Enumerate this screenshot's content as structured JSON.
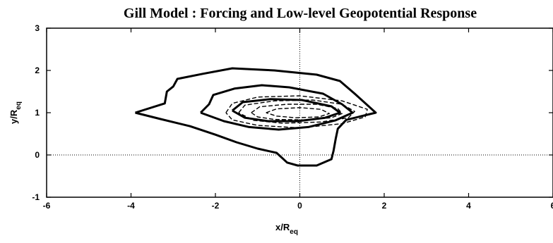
{
  "chart_data": {
    "type": "contour",
    "title": "Gill Model : Forcing and Low-level Geopotential Response",
    "xlabel": "x/R",
    "xlabel_sub": "eq",
    "ylabel": "y/R",
    "ylabel_sub": "eq",
    "xlim": [
      -6,
      6
    ],
    "ylim": [
      -1,
      3
    ],
    "x_ticks": [
      -6,
      -4,
      -2,
      0,
      2,
      4,
      6
    ],
    "y_ticks": [
      -1,
      0,
      1,
      2,
      3
    ],
    "x_tick_labels": [
      "-6",
      "-4",
      "-2",
      "0",
      "2",
      "4",
      "6"
    ],
    "y_tick_labels": [
      "-1",
      "0",
      "1",
      "2",
      "3"
    ],
    "reference_lines": {
      "x": 0,
      "y": 0,
      "style": "dotted"
    },
    "series": [
      {
        "style": "solid-thick",
        "contours": [
          [
            [
              -3.9,
              1.0
            ],
            [
              -3.2,
              1.22
            ],
            [
              -3.15,
              1.5
            ],
            [
              -3.0,
              1.62
            ],
            [
              -2.9,
              1.8
            ],
            [
              -2.3,
              1.92
            ],
            [
              -1.6,
              2.05
            ],
            [
              -0.6,
              2.0
            ],
            [
              0.4,
              1.9
            ],
            [
              0.95,
              1.75
            ],
            [
              1.3,
              1.45
            ],
            [
              1.8,
              1.0
            ],
            [
              1.1,
              0.83
            ],
            [
              0.9,
              0.62
            ],
            [
              0.85,
              0.38
            ],
            [
              0.8,
              0.1
            ],
            [
              0.75,
              -0.1
            ],
            [
              0.4,
              -0.25
            ],
            [
              -0.05,
              -0.25
            ],
            [
              -0.3,
              -0.18
            ],
            [
              -0.55,
              0.05
            ],
            [
              -1.0,
              0.15
            ],
            [
              -1.5,
              0.3
            ],
            [
              -2.0,
              0.48
            ],
            [
              -2.6,
              0.68
            ],
            [
              -3.3,
              0.85
            ],
            [
              -3.9,
              1.0
            ]
          ],
          [
            [
              -2.35,
              1.0
            ],
            [
              -2.15,
              1.2
            ],
            [
              -2.05,
              1.42
            ],
            [
              -1.55,
              1.57
            ],
            [
              -0.9,
              1.65
            ],
            [
              -0.25,
              1.6
            ],
            [
              0.55,
              1.45
            ],
            [
              1.0,
              1.2
            ],
            [
              1.25,
              1.0
            ],
            [
              0.85,
              0.82
            ],
            [
              0.2,
              0.66
            ],
            [
              -0.5,
              0.6
            ],
            [
              -1.2,
              0.66
            ],
            [
              -1.8,
              0.8
            ],
            [
              -2.35,
              1.0
            ]
          ],
          [
            [
              -1.6,
              1.05
            ],
            [
              -1.35,
              1.25
            ],
            [
              -0.7,
              1.32
            ],
            [
              0.05,
              1.3
            ],
            [
              0.75,
              1.15
            ],
            [
              0.95,
              1.0
            ],
            [
              0.6,
              0.88
            ],
            [
              -0.05,
              0.8
            ],
            [
              -0.75,
              0.8
            ],
            [
              -1.3,
              0.88
            ],
            [
              -1.6,
              1.05
            ]
          ]
        ]
      },
      {
        "style": "dashed",
        "contours": [
          [
            [
              -1.75,
              1.0
            ],
            [
              -1.6,
              1.22
            ],
            [
              -1.0,
              1.37
            ],
            [
              0.0,
              1.4
            ],
            [
              1.0,
              1.28
            ],
            [
              1.6,
              1.08
            ],
            [
              1.55,
              0.9
            ],
            [
              1.0,
              0.74
            ],
            [
              0.0,
              0.64
            ],
            [
              -1.0,
              0.7
            ],
            [
              -1.6,
              0.83
            ],
            [
              -1.75,
              1.0
            ]
          ],
          [
            [
              -1.45,
              1.0
            ],
            [
              -1.3,
              1.18
            ],
            [
              -0.6,
              1.28
            ],
            [
              0.3,
              1.3
            ],
            [
              1.0,
              1.2
            ],
            [
              1.3,
              1.03
            ],
            [
              1.15,
              0.88
            ],
            [
              0.5,
              0.78
            ],
            [
              -0.4,
              0.75
            ],
            [
              -1.1,
              0.82
            ],
            [
              -1.45,
              1.0
            ]
          ],
          [
            [
              -1.15,
              1.0
            ],
            [
              -0.95,
              1.14
            ],
            [
              -0.3,
              1.2
            ],
            [
              0.4,
              1.2
            ],
            [
              0.9,
              1.1
            ],
            [
              1.0,
              0.98
            ],
            [
              0.75,
              0.88
            ],
            [
              0.1,
              0.83
            ],
            [
              -0.6,
              0.84
            ],
            [
              -1.0,
              0.9
            ],
            [
              -1.15,
              1.0
            ]
          ],
          [
            [
              -0.8,
              1.0
            ],
            [
              -0.55,
              1.09
            ],
            [
              0.0,
              1.12
            ],
            [
              0.5,
              1.08
            ],
            [
              0.7,
              0.98
            ],
            [
              0.45,
              0.9
            ],
            [
              -0.1,
              0.88
            ],
            [
              -0.55,
              0.92
            ],
            [
              -0.8,
              1.0
            ]
          ]
        ]
      }
    ]
  }
}
